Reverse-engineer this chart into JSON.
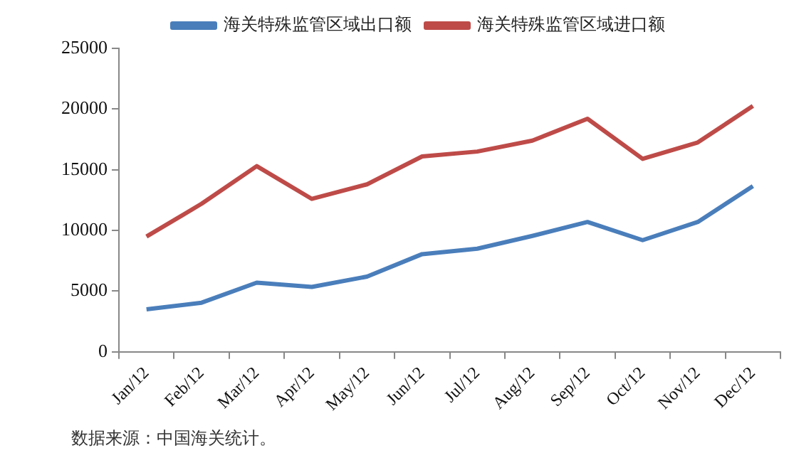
{
  "chart_data": {
    "type": "line",
    "categories": [
      "Jan/12",
      "Feb/12",
      "Mar/12",
      "Apr/12",
      "May/12",
      "Jun/12",
      "Jul/12",
      "Aug/12",
      "Sep/12",
      "Oct/12",
      "Nov/12",
      "Dec/12"
    ],
    "series": [
      {
        "name": "海关特殊监管区域出口额",
        "color": "#4a7ebb",
        "values": [
          3500,
          4050,
          5700,
          5350,
          6200,
          8050,
          8500,
          9550,
          10700,
          9200,
          10700,
          13650
        ]
      },
      {
        "name": "海关特殊监管区域进口额",
        "color": "#be4b48",
        "values": [
          9500,
          12200,
          15300,
          12600,
          13800,
          16100,
          16500,
          17400,
          19200,
          15900,
          17250,
          20250
        ]
      }
    ],
    "ylim": [
      0,
      25000
    ],
    "yticks": [
      0,
      5000,
      10000,
      15000,
      20000,
      25000
    ],
    "grid": false,
    "legend": "top",
    "marker": "none",
    "line_style": "solid",
    "annotations": [
      "数据来源：中国海关统计。"
    ]
  }
}
